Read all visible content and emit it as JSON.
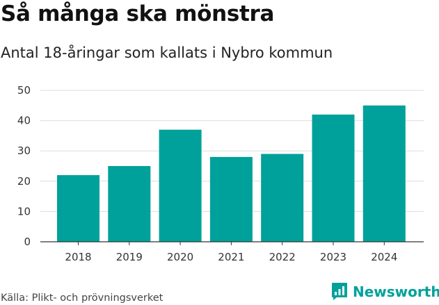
{
  "header": {
    "title": "Så många ska mönstra",
    "subtitle": "Antal 18-åringar som kallats i Nybro kommun"
  },
  "footer": {
    "source": "Källa: Plikt- och prövningsverket",
    "brand": "Newsworthy",
    "brand_icon": "newsworthy-logo-icon"
  },
  "colors": {
    "bar": "#00a19a",
    "grid": "#dddddd",
    "axis": "#333333"
  },
  "chart_data": {
    "type": "bar",
    "title": "Så många ska mönstra",
    "subtitle": "Antal 18-åringar som kallats i Nybro kommun",
    "xlabel": "",
    "ylabel": "",
    "categories": [
      "2018",
      "2019",
      "2020",
      "2021",
      "2022",
      "2023",
      "2024"
    ],
    "values": [
      22,
      25,
      37,
      28,
      29,
      42,
      45
    ],
    "ylim": [
      0,
      50
    ],
    "yticks": [
      0,
      10,
      20,
      30,
      40,
      50
    ],
    "grid": true,
    "legend": "none"
  }
}
